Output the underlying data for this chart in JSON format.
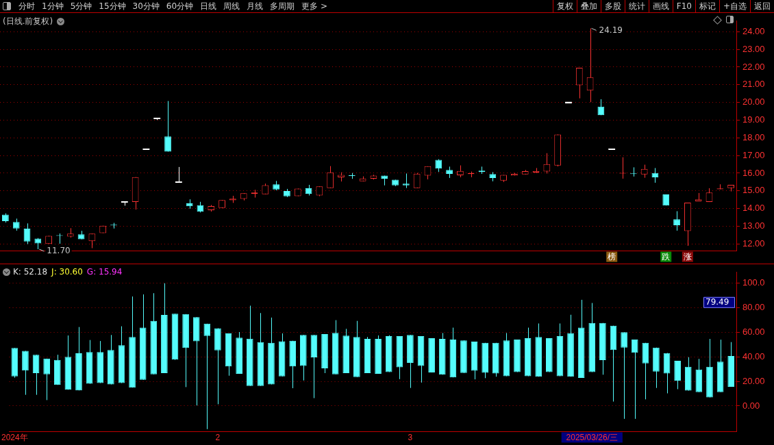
{
  "chart_data": [
    {
      "type": "other",
      "annotations": [
        "分时",
        "1分钟",
        "5分钟",
        "15分钟",
        "30分钟",
        "60分钟",
        "日线",
        "周线",
        "月线",
        "多周期",
        "更多 >"
      ]
    },
    {
      "type": "other",
      "annotations": [
        "复权",
        "叠加",
        "多股",
        "统计",
        "画线",
        "F10",
        "标记",
        "+自选",
        "返回"
      ]
    },
    {
      "type": "candlestick",
      "title": "(日线.前复权)",
      "grid": "y",
      "categories": [
        null,
        null,
        null,
        null,
        null,
        null,
        null,
        null,
        null,
        null,
        null,
        null,
        null,
        null,
        null,
        null,
        null,
        null,
        null,
        null,
        null,
        null,
        null,
        null,
        null,
        null,
        null,
        null,
        null,
        null,
        null,
        null,
        null,
        null,
        null,
        null,
        null,
        null,
        null,
        null,
        null,
        null,
        null,
        null,
        null,
        null,
        null,
        null,
        null,
        null,
        null,
        null,
        null,
        null,
        null,
        null,
        "榜",
        null,
        null,
        null,
        null,
        "跌",
        null,
        "涨",
        null,
        null,
        null,
        null
      ],
      "ohlc": [
        [
          13.66,
          13.73,
          13.21,
          13.29
        ],
        [
          13.24,
          13.43,
          12.75,
          12.87
        ],
        [
          12.86,
          13.16,
          11.99,
          12.14
        ],
        [
          12.3,
          12.33,
          11.7,
          12.03
        ],
        [
          12.0,
          12.46,
          12.0,
          12.46
        ],
        [
          12.47,
          12.59,
          12.01,
          12.46
        ],
        [
          12.42,
          12.89,
          12.36,
          12.58
        ],
        [
          12.54,
          12.74,
          12.26,
          12.26
        ],
        [
          12.16,
          12.58,
          11.76,
          12.58
        ],
        [
          12.61,
          13.03,
          12.61,
          13.03
        ],
        [
          13.06,
          13.19,
          12.87,
          13.05
        ],
        [
          14.38,
          14.38,
          14.16,
          14.38
        ],
        [
          14.37,
          15.78,
          13.94,
          15.78
        ],
        [
          17.35,
          17.35,
          17.35,
          17.35
        ],
        [
          19.1,
          19.1,
          19.01,
          19.1
        ],
        [
          18.08,
          20.08,
          17.22,
          17.22
        ],
        [
          15.48,
          16.35,
          15.48,
          15.48
        ],
        [
          14.29,
          14.52,
          13.99,
          14.13
        ],
        [
          14.19,
          14.38,
          13.78,
          13.82
        ],
        [
          13.91,
          14.2,
          13.83,
          14.14
        ],
        [
          14.03,
          14.48,
          14.03,
          14.48
        ],
        [
          14.47,
          14.72,
          14.32,
          14.56
        ],
        [
          14.55,
          14.87,
          14.46,
          14.87
        ],
        [
          14.83,
          15.06,
          14.62,
          14.9
        ],
        [
          14.81,
          15.41,
          14.81,
          15.32
        ],
        [
          15.37,
          15.56,
          15.03,
          15.08
        ],
        [
          14.99,
          15.11,
          14.65,
          14.69
        ],
        [
          14.7,
          15.13,
          14.7,
          15.13
        ],
        [
          15.15,
          15.34,
          14.74,
          14.84
        ],
        [
          14.74,
          15.25,
          14.7,
          15.25
        ],
        [
          15.16,
          16.4,
          15.16,
          16.05
        ],
        [
          15.77,
          16.05,
          15.53,
          15.9
        ],
        [
          15.85,
          16.01,
          15.68,
          15.84
        ],
        [
          15.54,
          15.82,
          15.54,
          15.7
        ],
        [
          15.69,
          15.91,
          15.64,
          15.86
        ],
        [
          15.86,
          15.86,
          15.31,
          15.69
        ],
        [
          15.63,
          15.63,
          15.27,
          15.31
        ],
        [
          15.41,
          15.98,
          15.16,
          15.31
        ],
        [
          15.16,
          16.01,
          15.16,
          15.97
        ],
        [
          15.86,
          16.39,
          15.65,
          16.39
        ],
        [
          16.75,
          16.79,
          16.07,
          16.26
        ],
        [
          16.18,
          16.37,
          15.73,
          15.96
        ],
        [
          15.88,
          16.44,
          15.77,
          16.12
        ],
        [
          15.95,
          16.09,
          15.77,
          16.0
        ],
        [
          16.14,
          16.37,
          15.96,
          16.07
        ],
        [
          15.95,
          16.06,
          15.54,
          15.73
        ],
        [
          15.58,
          15.9,
          15.5,
          15.9
        ],
        [
          15.86,
          16.01,
          15.86,
          15.96
        ],
        [
          15.93,
          16.18,
          15.93,
          16.11
        ],
        [
          16.04,
          16.29,
          16.01,
          16.12
        ],
        [
          16.09,
          17.13,
          15.98,
          16.51
        ],
        [
          16.43,
          18.19,
          16.38,
          18.19
        ],
        [
          20.0,
          20.0,
          20.0,
          20.0
        ],
        [
          20.97,
          21.96,
          20.23,
          21.96
        ],
        [
          20.67,
          24.19,
          20.01,
          21.43
        ],
        [
          19.76,
          20.18,
          19.28,
          19.28
        ],
        [
          17.35,
          17.35,
          17.35,
          17.35
        ],
        [
          15.98,
          16.9,
          15.69,
          16.0
        ],
        [
          15.97,
          16.33,
          15.81,
          15.95
        ],
        [
          15.93,
          16.48,
          15.74,
          16.24
        ],
        [
          16.01,
          16.29,
          15.46,
          15.77
        ],
        [
          14.8,
          14.8,
          14.17,
          14.17
        ],
        [
          13.39,
          13.85,
          12.75,
          13.06
        ],
        [
          12.73,
          14.33,
          11.89,
          14.33
        ],
        [
          14.41,
          14.88,
          14.41,
          14.52
        ],
        [
          14.37,
          15.15,
          14.37,
          14.9
        ],
        [
          15.09,
          15.37,
          15.09,
          15.14
        ],
        [
          15.16,
          15.34,
          14.97,
          15.34
        ]
      ],
      "colors": [
        "#54fcfc",
        "#54fcfc",
        "#54fcfc",
        "#54fcfc",
        "#ff3232",
        "#54fcfc",
        "#ff3232",
        "#54fcfc",
        "#ff3232",
        "#ff3232",
        "#54fcfc",
        "#ffffff",
        "#ff3232",
        "#ffffff",
        "#ffffff",
        "#54fcfc",
        "#ffffff",
        "#54fcfc",
        "#54fcfc",
        "#ff3232",
        "#ff3232",
        "#ff3232",
        "#ff3232",
        "#ff3232",
        "#ff3232",
        "#54fcfc",
        "#54fcfc",
        "#ff3232",
        "#54fcfc",
        "#ff3232",
        "#ff3232",
        "#ff3232",
        "#54fcfc",
        "#ff3232",
        "#ff3232",
        "#54fcfc",
        "#54fcfc",
        "#54fcfc",
        "#ff3232",
        "#ff3232",
        "#54fcfc",
        "#54fcfc",
        "#ff3232",
        "#ff3232",
        "#54fcfc",
        "#54fcfc",
        "#ff3232",
        "#ff3232",
        "#ff3232",
        "#ff3232",
        "#ff3232",
        "#ff3232",
        "#ffffff",
        "#ff3232",
        "#ff3232",
        "#54fcfc",
        "#ffffff",
        "#ff3232",
        "#54fcfc",
        "#ff3232",
        "#54fcfc",
        "#54fcfc",
        "#54fcfc",
        "#ff3232",
        "#ff3232",
        "#ff3232",
        "#ff3232",
        "#ff3232"
      ],
      "ylim": [
        11.6,
        24.6
      ],
      "yticks": [
        {
          "value": 12,
          "label": "12.00"
        },
        {
          "value": 13,
          "label": "13.00"
        },
        {
          "value": 14,
          "label": "14.00"
        },
        {
          "value": 15,
          "label": "15.00"
        },
        {
          "value": 16,
          "label": "16.00"
        },
        {
          "value": 17,
          "label": "17.00"
        },
        {
          "value": 18,
          "label": "18.00"
        },
        {
          "value": 19,
          "label": "19.00"
        },
        {
          "value": 20,
          "label": "20.00"
        },
        {
          "value": 21,
          "label": "21.00"
        },
        {
          "value": 22,
          "label": "22.00"
        },
        {
          "value": 23,
          "label": "23.00"
        },
        {
          "value": 24,
          "label": "24.00"
        }
      ],
      "annotations": [
        "24.19",
        "11.70"
      ]
    },
    {
      "type": "candlestick",
      "grid": "y",
      "color": "#54fcfc",
      "annotations": [
        "K: 52.18",
        "J: 30.60",
        "G: 15.94",
        "79.49"
      ],
      "categories": [
        "2024年",
        null,
        null,
        null,
        null,
        null,
        null,
        null,
        null,
        null,
        null,
        null,
        null,
        null,
        null,
        null,
        null,
        null,
        null,
        "2",
        null,
        null,
        null,
        null,
        null,
        null,
        null,
        null,
        null,
        null,
        null,
        null,
        null,
        null,
        null,
        null,
        null,
        "3",
        null,
        null,
        null,
        null,
        null,
        null,
        null,
        null,
        null,
        null,
        null,
        null,
        null,
        null,
        null,
        null,
        "2025/03/26/三",
        null,
        null,
        null,
        null,
        null,
        null,
        null,
        null,
        null,
        null,
        null,
        null,
        null
      ],
      "ohlc": [
        [
          47.3,
          47.3,
          23.1,
          24.1
        ],
        [
          44.9,
          44.9,
          9.1,
          28.9
        ],
        [
          41.8,
          41.8,
          9.1,
          26.8
        ],
        [
          38.6,
          38.6,
          4.8,
          25.8
        ],
        [
          37.6,
          41.8,
          17.2,
          17.2
        ],
        [
          40.1,
          57.5,
          13.3,
          13.3
        ],
        [
          43.0,
          64.4,
          12.7,
          12.7
        ],
        [
          44.0,
          53.8,
          18.1,
          18.1
        ],
        [
          44.0,
          53.0,
          18.7,
          18.7
        ],
        [
          45.7,
          57.9,
          17.6,
          17.6
        ],
        [
          49.6,
          65.0,
          18.7,
          18.7
        ],
        [
          56.3,
          89.3,
          15.0,
          15.0
        ],
        [
          64.0,
          91.0,
          21.4,
          21.4
        ],
        [
          69.4,
          92.0,
          25.8,
          25.8
        ],
        [
          74.3,
          100.1,
          26.8,
          26.8
        ],
        [
          75.2,
          75.2,
          37.6,
          37.8
        ],
        [
          74.9,
          74.9,
          15.4,
          47.3
        ],
        [
          72.5,
          72.5,
          0.4,
          52.7
        ],
        [
          67.1,
          67.1,
          -18.9,
          57.1
        ],
        [
          63.4,
          63.4,
          1.4,
          45.3
        ],
        [
          59.2,
          59.2,
          24.7,
          32.2
        ],
        [
          55.7,
          60.3,
          26.2,
          26.2
        ],
        [
          54.8,
          81.8,
          16.4,
          16.4
        ],
        [
          52.1,
          75.8,
          16.4,
          16.4
        ],
        [
          51.5,
          72.1,
          17.6,
          17.6
        ],
        [
          52.7,
          59.2,
          24.1,
          24.1
        ],
        [
          53.2,
          53.2,
          14.5,
          32.2
        ],
        [
          58.0,
          58.0,
          20.8,
          32.6
        ],
        [
          58.0,
          58.0,
          6.4,
          39.7
        ],
        [
          58.6,
          58.6,
          26.8,
          30.7
        ],
        [
          59.6,
          70.0,
          25.8,
          25.8
        ],
        [
          57.4,
          62.9,
          26.8,
          26.8
        ],
        [
          56.3,
          69.4,
          23.6,
          23.6
        ],
        [
          54.7,
          56.3,
          26.8,
          26.8
        ],
        [
          54.7,
          57.5,
          26.2,
          26.2
        ],
        [
          56.9,
          57.7,
          27.7,
          27.7
        ],
        [
          56.9,
          56.9,
          21.9,
          31.6
        ],
        [
          57.9,
          57.9,
          14.7,
          35.2
        ],
        [
          56.9,
          56.9,
          19.1,
          32.6
        ],
        [
          55.3,
          55.3,
          27.3,
          27.3
        ],
        [
          54.7,
          59.5,
          25.5,
          25.5
        ],
        [
          54.1,
          63.9,
          23.3,
          23.3
        ],
        [
          53.5,
          53.5,
          26.9,
          26.9
        ],
        [
          52.5,
          52.5,
          21.7,
          28.7
        ],
        [
          51.5,
          51.5,
          22.7,
          27.1
        ],
        [
          51.5,
          51.5,
          23.9,
          26.5
        ],
        [
          53.5,
          59.5,
          24.3,
          24.3
        ],
        [
          54.1,
          54.1,
          27.7,
          27.7
        ],
        [
          55.3,
          63.9,
          24.3,
          24.3
        ],
        [
          56.3,
          67.3,
          23.9,
          23.9
        ],
        [
          55.3,
          55.3,
          27.7,
          27.7
        ],
        [
          56.9,
          67.3,
          24.3,
          24.3
        ],
        [
          59.5,
          74.4,
          23.9,
          23.9
        ],
        [
          63.9,
          86.6,
          22.9,
          22.9
        ],
        [
          67.7,
          84.0,
          27.7,
          27.7
        ],
        [
          67.7,
          67.7,
          25.5,
          37.4
        ],
        [
          65.5,
          65.5,
          3.6,
          45.6
        ],
        [
          60.1,
          60.1,
          -10.5,
          47.6
        ],
        [
          54.1,
          54.1,
          -10.5,
          43.4
        ],
        [
          51.5,
          51.5,
          5.4,
          34.8
        ],
        [
          47.6,
          47.6,
          14.7,
          28.1
        ],
        [
          43.2,
          43.2,
          10.3,
          26.5
        ],
        [
          36.8,
          36.8,
          13.7,
          20.7
        ],
        [
          32.0,
          39.8,
          12.5,
          12.5
        ],
        [
          29.7,
          38.4,
          11.3,
          11.3
        ],
        [
          32.0,
          54.7,
          7.0,
          7.0
        ],
        [
          36.2,
          54.1,
          11.3,
          11.3
        ],
        [
          40.8,
          52.1,
          15.7,
          15.7
        ]
      ],
      "ylim": [
        -21,
        109
      ],
      "yticks": [
        {
          "value": 0,
          "label": "0.00"
        },
        {
          "value": 20,
          "label": "20.00"
        },
        {
          "value": 40,
          "label": "40.00"
        },
        {
          "value": 60,
          "label": "60.00"
        },
        {
          "value": 80,
          "label": "80.00"
        },
        {
          "value": 100,
          "label": "100.0"
        }
      ]
    }
  ]
}
